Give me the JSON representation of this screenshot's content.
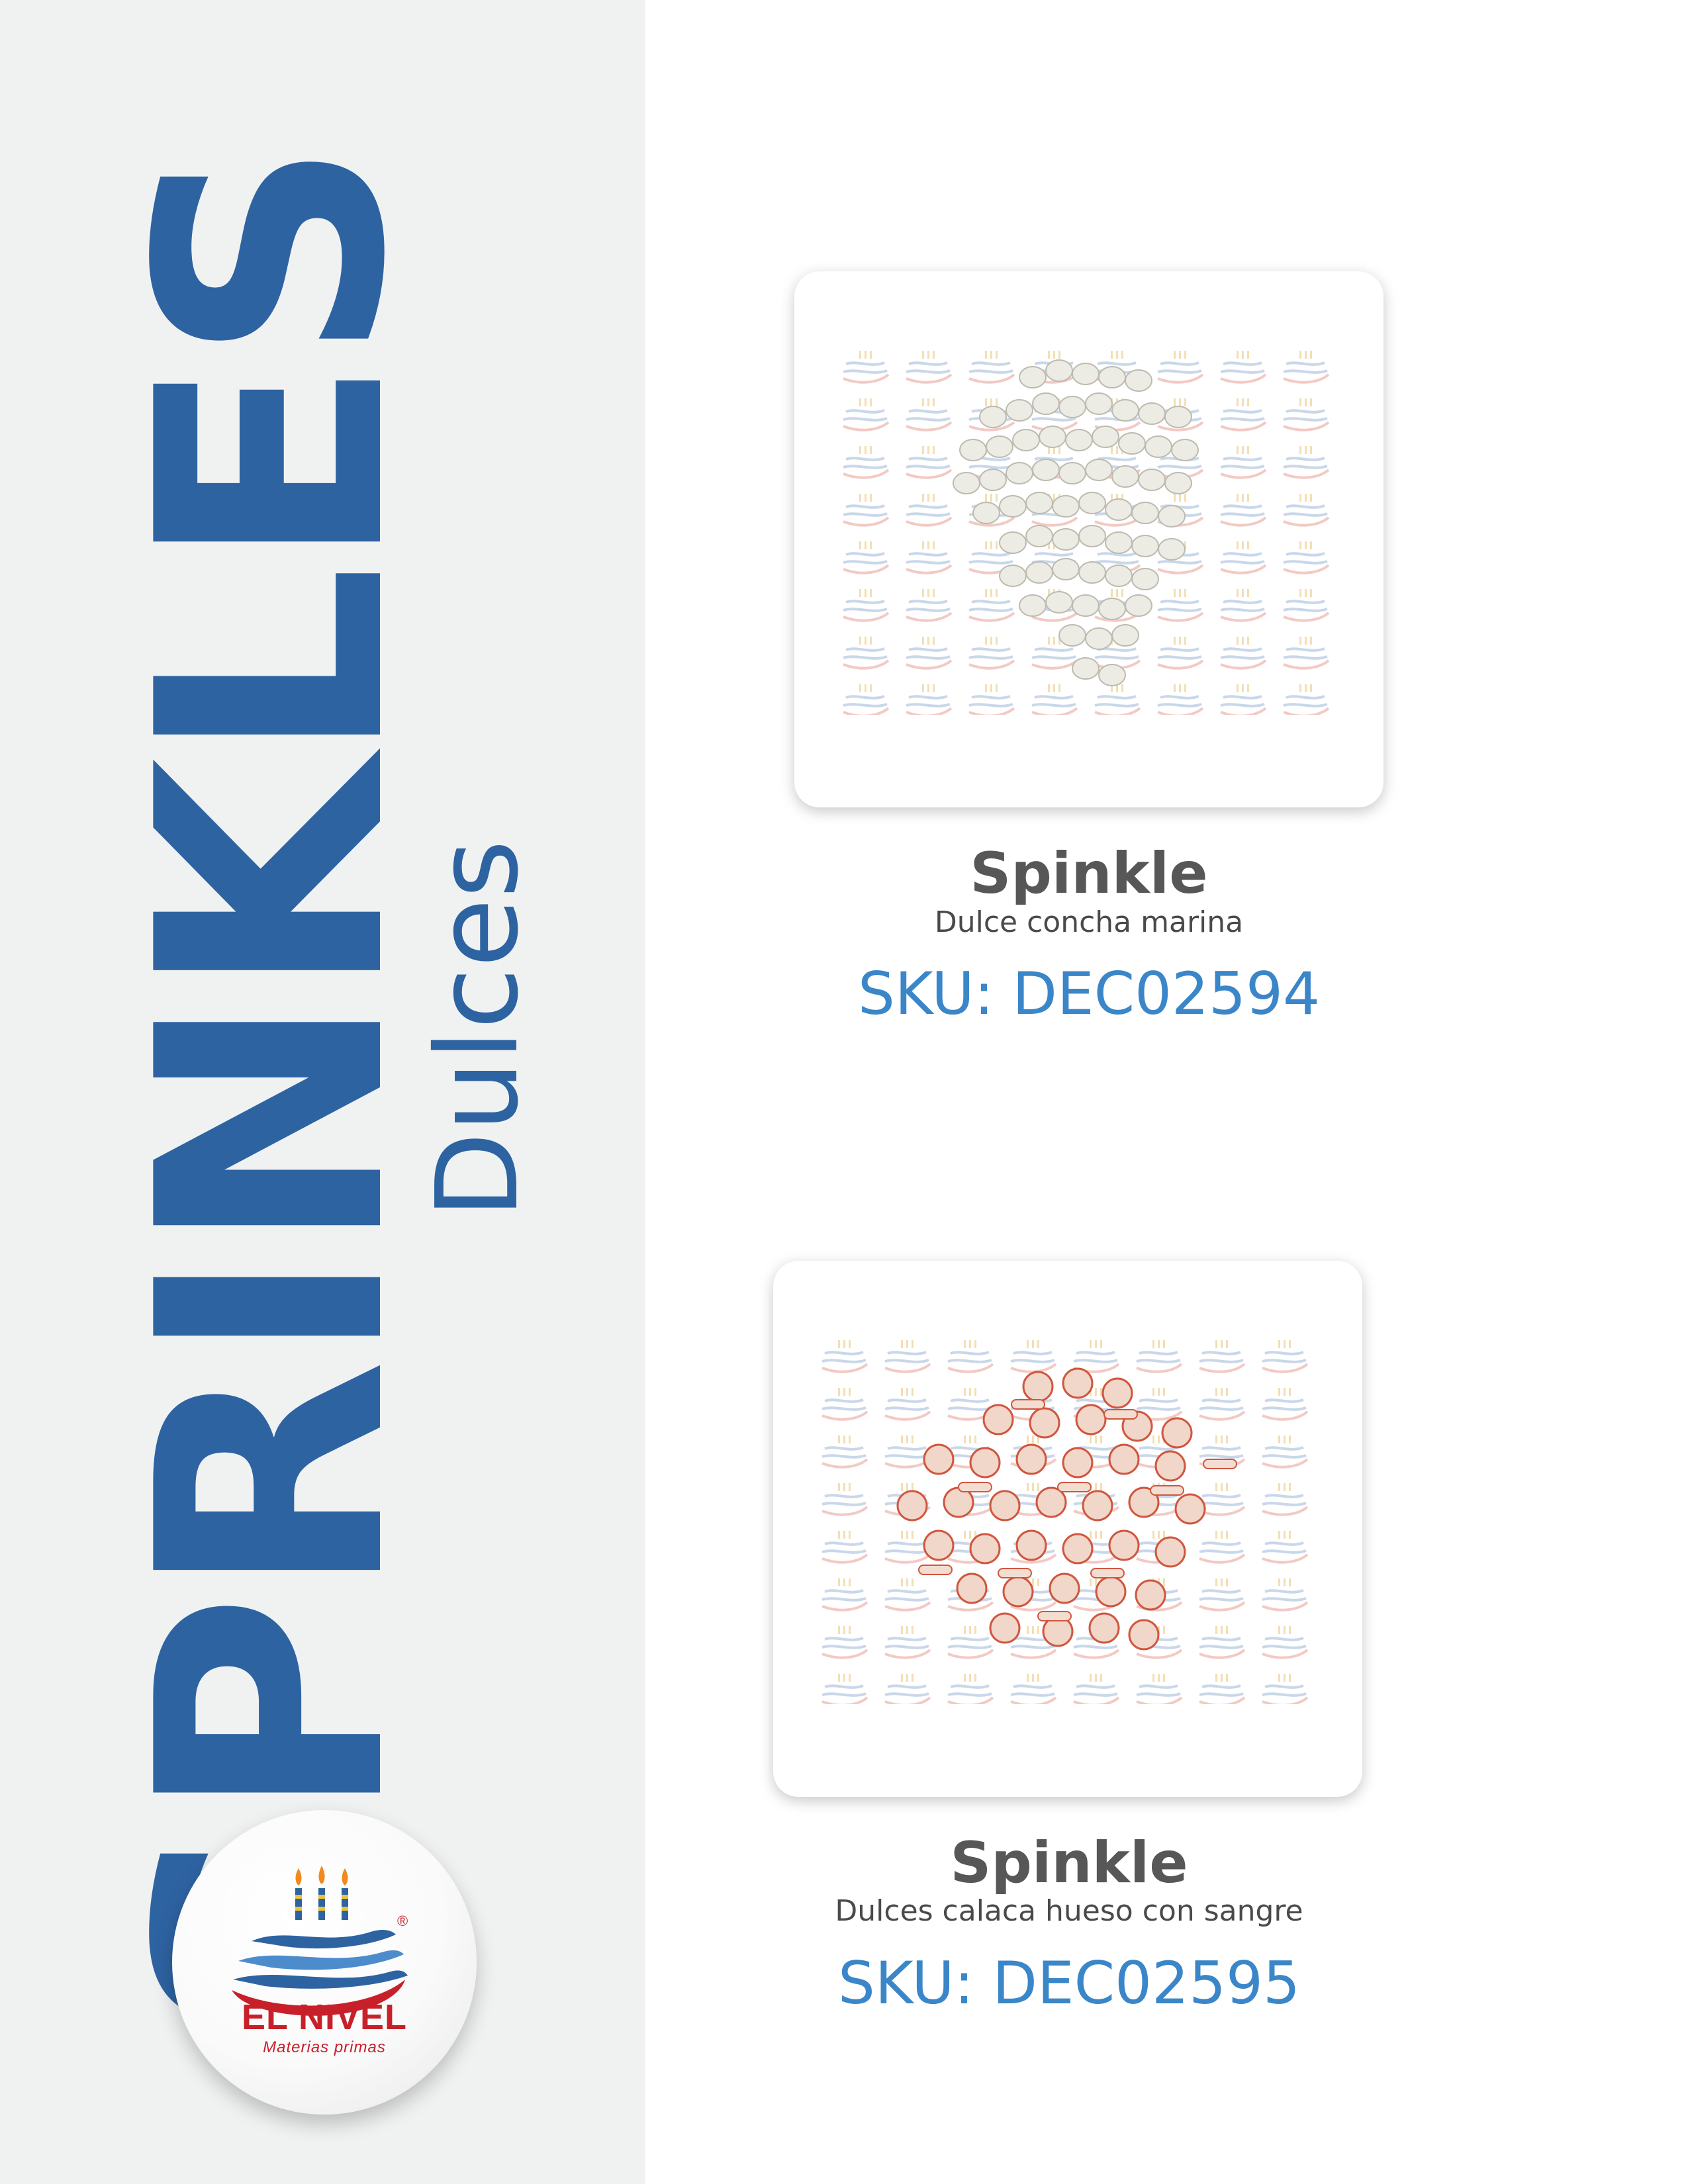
{
  "sidebar": {
    "title": "SPRINKLES",
    "subtitle": "Dulces",
    "logo": {
      "name": "EL NIVEL",
      "tagline": "Materias primas",
      "registered": "®"
    }
  },
  "colors": {
    "brand_blue": "#2e63a2",
    "sku_blue": "#3a86c8",
    "sidebar_bg": "#f0f2f2",
    "logo_red": "#c8202a"
  },
  "products": [
    {
      "name": "Spinkle",
      "description": "Dulce concha marina",
      "sku": "SKU: DEC02594",
      "image": "white-seashell-candies-image"
    },
    {
      "name": "Spinkle",
      "description": "Dulces calaca hueso con sangre",
      "sku": "SKU: DEC02595",
      "image": "skull-bone-blood-candies-image"
    }
  ]
}
